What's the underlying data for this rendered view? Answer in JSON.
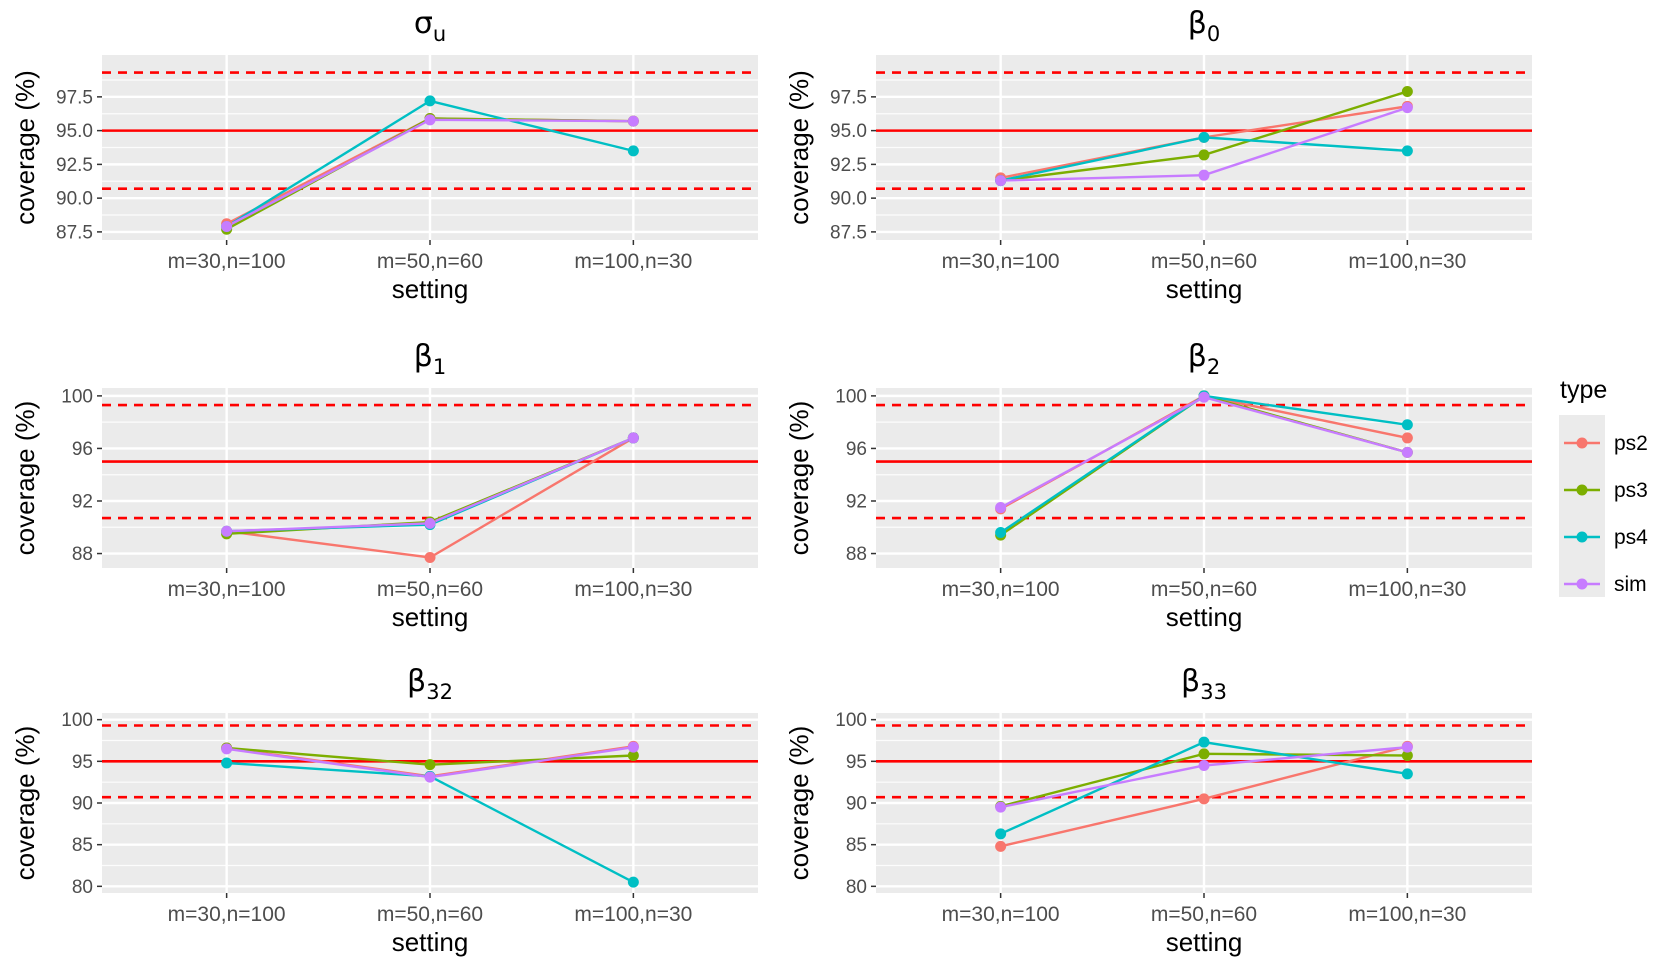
{
  "chart_data": [
    {
      "type": "line",
      "title": "σ",
      "title_sub": "u",
      "xlabel": "setting",
      "ylabel": "coverage (%)",
      "categories": [
        "m=30,n=100",
        "m=50,n=60",
        "m=100,n=30"
      ],
      "ylim": [
        86.9,
        100.6
      ],
      "yticks": [
        87.5,
        90.0,
        92.5,
        95.0,
        97.5
      ],
      "ytick_labels": [
        "87.5",
        "90.0",
        "92.5",
        "95.0",
        "97.5"
      ],
      "reference_lines": {
        "solid": 95.0,
        "dashed": [
          90.7,
          99.3
        ],
        "color": "#ff0000"
      },
      "series": [
        {
          "name": "ps2",
          "values": [
            88.1,
            95.9,
            95.7
          ]
        },
        {
          "name": "ps3",
          "values": [
            87.7,
            95.9,
            95.7
          ]
        },
        {
          "name": "ps4",
          "values": [
            87.9,
            97.2,
            93.5
          ]
        },
        {
          "name": "sim",
          "values": [
            87.9,
            95.8,
            95.7
          ]
        }
      ]
    },
    {
      "type": "line",
      "title": "β",
      "title_sub": "0",
      "xlabel": "setting",
      "ylabel": "coverage (%)",
      "categories": [
        "m=30,n=100",
        "m=50,n=60",
        "m=100,n=30"
      ],
      "ylim": [
        86.9,
        100.6
      ],
      "yticks": [
        87.5,
        90.0,
        92.5,
        95.0,
        97.5
      ],
      "ytick_labels": [
        "87.5",
        "90.0",
        "92.5",
        "95.0",
        "97.5"
      ],
      "reference_lines": {
        "solid": 95.0,
        "dashed": [
          90.7,
          99.3
        ],
        "color": "#ff0000"
      },
      "series": [
        {
          "name": "ps2",
          "values": [
            91.5,
            94.5,
            96.8
          ]
        },
        {
          "name": "ps3",
          "values": [
            91.3,
            93.2,
            97.9
          ]
        },
        {
          "name": "ps4",
          "values": [
            91.3,
            94.5,
            93.5
          ]
        },
        {
          "name": "sim",
          "values": [
            91.3,
            91.7,
            96.7
          ]
        }
      ]
    },
    {
      "type": "line",
      "title": "β",
      "title_sub": "1",
      "xlabel": "setting",
      "ylabel": "coverage (%)",
      "categories": [
        "m=30,n=100",
        "m=50,n=60",
        "m=100,n=30"
      ],
      "ylim": [
        86.9,
        100.6
      ],
      "yticks": [
        88,
        92,
        96,
        100
      ],
      "ytick_labels": [
        "88",
        "92",
        "96",
        "100"
      ],
      "reference_lines": {
        "solid": 95.0,
        "dashed": [
          90.7,
          99.3
        ],
        "color": "#ff0000"
      },
      "series": [
        {
          "name": "ps2",
          "values": [
            89.7,
            87.7,
            96.8
          ]
        },
        {
          "name": "ps3",
          "values": [
            89.5,
            90.4,
            96.8
          ]
        },
        {
          "name": "ps4",
          "values": [
            89.7,
            90.2,
            96.8
          ]
        },
        {
          "name": "sim",
          "values": [
            89.7,
            90.3,
            96.8
          ]
        }
      ]
    },
    {
      "type": "line",
      "title": "β",
      "title_sub": "2",
      "xlabel": "setting",
      "ylabel": "coverage (%)",
      "categories": [
        "m=30,n=100",
        "m=50,n=60",
        "m=100,n=30"
      ],
      "ylim": [
        86.9,
        100.6
      ],
      "yticks": [
        88,
        92,
        96,
        100
      ],
      "ytick_labels": [
        "88",
        "92",
        "96",
        "100"
      ],
      "reference_lines": {
        "solid": 95.0,
        "dashed": [
          90.7,
          99.3
        ],
        "color": "#ff0000"
      },
      "series": [
        {
          "name": "ps2",
          "values": [
            91.4,
            100.0,
            96.8
          ]
        },
        {
          "name": "ps3",
          "values": [
            89.4,
            100.0,
            95.7
          ]
        },
        {
          "name": "ps4",
          "values": [
            89.6,
            100.0,
            97.8
          ]
        },
        {
          "name": "sim",
          "values": [
            91.5,
            99.9,
            95.7
          ]
        }
      ]
    },
    {
      "type": "line",
      "title": "β",
      "title_sub": "32",
      "xlabel": "setting",
      "ylabel": "coverage (%)",
      "categories": [
        "m=30,n=100",
        "m=50,n=60",
        "m=100,n=30"
      ],
      "ylim": [
        79.2,
        100.8
      ],
      "yticks": [
        80,
        85,
        90,
        95,
        100
      ],
      "ytick_labels": [
        "80",
        "85",
        "90",
        "95",
        "100"
      ],
      "reference_lines": {
        "solid": 95.0,
        "dashed": [
          90.7,
          99.3
        ],
        "color": "#ff0000"
      },
      "series": [
        {
          "name": "ps2",
          "values": [
            96.6,
            93.2,
            96.8
          ]
        },
        {
          "name": "ps3",
          "values": [
            96.6,
            94.6,
            95.7
          ]
        },
        {
          "name": "ps4",
          "values": [
            94.8,
            93.2,
            80.5
          ]
        },
        {
          "name": "sim",
          "values": [
            96.5,
            93.1,
            96.7
          ]
        }
      ]
    },
    {
      "type": "line",
      "title": "β",
      "title_sub": "33",
      "xlabel": "setting",
      "ylabel": "coverage (%)",
      "categories": [
        "m=30,n=100",
        "m=50,n=60",
        "m=100,n=30"
      ],
      "ylim": [
        79.2,
        100.8
      ],
      "yticks": [
        80,
        85,
        90,
        95,
        100
      ],
      "ytick_labels": [
        "80",
        "85",
        "90",
        "95",
        "100"
      ],
      "reference_lines": {
        "solid": 95.0,
        "dashed": [
          90.7,
          99.3
        ],
        "color": "#ff0000"
      },
      "series": [
        {
          "name": "ps2",
          "values": [
            84.8,
            90.5,
            96.8
          ]
        },
        {
          "name": "ps3",
          "values": [
            89.6,
            95.9,
            95.7
          ]
        },
        {
          "name": "ps4",
          "values": [
            86.3,
            97.3,
            93.5
          ]
        },
        {
          "name": "sim",
          "values": [
            89.5,
            94.5,
            96.7
          ]
        }
      ]
    }
  ],
  "legend": {
    "title": "type",
    "placement": "right",
    "items": [
      {
        "label": "ps2",
        "color": "#F8766D"
      },
      {
        "label": "ps3",
        "color": "#7CAE00"
      },
      {
        "label": "ps4",
        "color": "#00BFC4"
      },
      {
        "label": "sim",
        "color": "#C77CFF"
      }
    ]
  },
  "colors": {
    "panel_background": "#EBEBEB",
    "grid": "#FFFFFF",
    "reference_line": "#FF0000"
  }
}
